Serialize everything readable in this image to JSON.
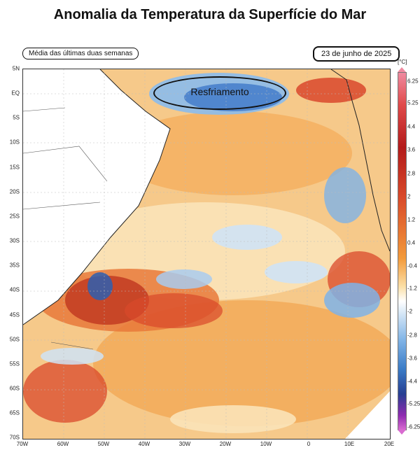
{
  "title": "Anomalia da Temperatura da Superfície do Mar",
  "subtitle": "Média das últimas duas semanas",
  "date": "23 de junho de 2025",
  "annotation": "Resfriamento",
  "colorbar": {
    "unit": "[°C]",
    "labels": [
      "6.25",
      "5.25",
      "4.4",
      "3.6",
      "2.8",
      "2",
      "1.2",
      "0.4",
      "-0.4",
      "-1.2",
      "-2",
      "-2.8",
      "-3.6",
      "-4.4",
      "-5.25",
      "-6.25"
    ]
  },
  "lat_labels": [
    "5N",
    "EQ",
    "5S",
    "10S",
    "15S",
    "20S",
    "25S",
    "30S",
    "35S",
    "40S",
    "45S",
    "50S",
    "55S",
    "60S",
    "65S",
    "70S"
  ],
  "lon_labels": [
    "70W",
    "60W",
    "50W",
    "40W",
    "30W",
    "20W",
    "10W",
    "0",
    "10E",
    "20E"
  ],
  "colors": {
    "warm": "#f5b060",
    "hot": "#d9482b",
    "cool": "#8fbde8",
    "cold": "#3f78c8",
    "land": "#ffffff",
    "coast": "#222222"
  }
}
